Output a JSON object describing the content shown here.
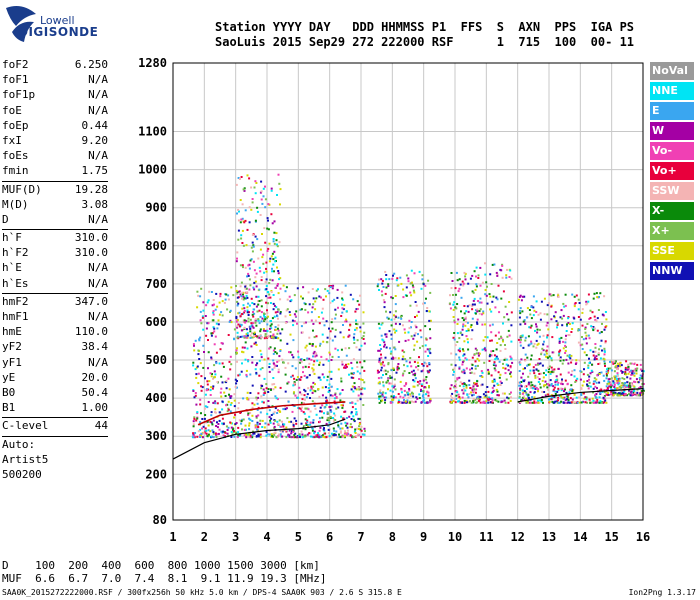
{
  "logo": {
    "line1": "Lowell",
    "line2": "DIGISONDE"
  },
  "header": {
    "line1": "Station YYYY DAY   DDD HHMMSS P1  FFS  S  AXN  PPS  IGA PS",
    "line2": "SaoLuis 2015 Sep29 272 222000 RSF      1  715  100  00- 11"
  },
  "params": [
    {
      "k": "foF2",
      "v": "6.250"
    },
    {
      "k": "foF1",
      "v": "N/A"
    },
    {
      "k": "foF1p",
      "v": "N/A"
    },
    {
      "k": "foE",
      "v": "N/A"
    },
    {
      "k": "foEp",
      "v": "0.44"
    },
    {
      "k": "fxI",
      "v": "9.20"
    },
    {
      "k": "foEs",
      "v": "N/A"
    },
    {
      "k": "fmin",
      "v": "1.75"
    },
    {
      "k": "MUF(D)",
      "v": "19.28",
      "sepBefore": true
    },
    {
      "k": "M(D)",
      "v": "3.08"
    },
    {
      "k": "D",
      "v": "N/A"
    },
    {
      "k": "h`F",
      "v": "310.0",
      "sepBefore": true
    },
    {
      "k": "h`F2",
      "v": "310.0"
    },
    {
      "k": "h`E",
      "v": "N/A"
    },
    {
      "k": "h`Es",
      "v": "N/A"
    },
    {
      "k": "hmF2",
      "v": "347.0",
      "sepBefore": true
    },
    {
      "k": "hmF1",
      "v": "N/A"
    },
    {
      "k": "hmE",
      "v": "110.0"
    },
    {
      "k": "yF2",
      "v": "38.4"
    },
    {
      "k": "yF1",
      "v": "N/A"
    },
    {
      "k": "yE",
      "v": "20.0"
    },
    {
      "k": "B0",
      "v": "50.4"
    },
    {
      "k": "B1",
      "v": "1.00"
    },
    {
      "k": "C-level",
      "v": "44",
      "sepBefore": true
    },
    {
      "k": "Auto:",
      "v": "",
      "sepBefore": true
    },
    {
      "k": "Artist5",
      "v": ""
    },
    {
      "k": "500200",
      "v": ""
    }
  ],
  "legend": [
    {
      "label": "NoVal",
      "color": "#9a9a9a"
    },
    {
      "label": "NNE",
      "color": "#00e4f4"
    },
    {
      "label": "E",
      "color": "#3aa6f0"
    },
    {
      "label": "W",
      "color": "#a400a4"
    },
    {
      "label": "Vo-",
      "color": "#f040b4"
    },
    {
      "label": "Vo+",
      "color": "#e8003c"
    },
    {
      "label": "SSW",
      "color": "#f4b4b4"
    },
    {
      "label": "X-",
      "color": "#0a8a0a"
    },
    {
      "label": "X+",
      "color": "#7cc050"
    },
    {
      "label": "SSE",
      "color": "#d8d800"
    },
    {
      "label": "NNW",
      "color": "#1010b4"
    }
  ],
  "chart_data": {
    "type": "scatter",
    "xlim": [
      1,
      16
    ],
    "ylim": [
      80,
      1280
    ],
    "x_ticks": [
      1,
      2,
      3,
      4,
      5,
      6,
      7,
      8,
      9,
      10,
      11,
      12,
      13,
      14,
      15,
      16
    ],
    "y_ticks": [
      80,
      200,
      300,
      400,
      500,
      600,
      700,
      800,
      900,
      1000,
      1100,
      1280
    ],
    "grid": true,
    "frequency_clusters": [
      {
        "x": [
          1.6,
          7.1
        ],
        "y": [
          300,
          700
        ]
      },
      {
        "x": [
          3.0,
          4.4
        ],
        "y": [
          560,
          1000
        ]
      },
      {
        "x": [
          7.5,
          9.2
        ],
        "y": [
          390,
          740
        ]
      },
      {
        "x": [
          9.8,
          11.8
        ],
        "y": [
          390,
          760
        ]
      },
      {
        "x": [
          12.0,
          14.8
        ],
        "y": [
          390,
          680
        ]
      },
      {
        "x": [
          14.8,
          16.0
        ],
        "y": [
          410,
          500
        ]
      }
    ],
    "trace_lower_line": [
      [
        1,
        240
      ],
      [
        2,
        283
      ],
      [
        3,
        305
      ],
      [
        4,
        315
      ],
      [
        5,
        320
      ],
      [
        6,
        330
      ],
      [
        6.5,
        345
      ]
    ],
    "trace_upper_line": [
      [
        12,
        390
      ],
      [
        13,
        405
      ],
      [
        14,
        415
      ],
      [
        15,
        420
      ],
      [
        16,
        425
      ]
    ],
    "trace_red_line": [
      [
        1.8,
        330
      ],
      [
        2.5,
        355
      ],
      [
        3.5,
        370
      ],
      [
        4.5,
        380
      ],
      [
        5.5,
        385
      ],
      [
        6.5,
        390
      ]
    ]
  },
  "dtable": {
    "row1": "D    100  200  400  600  800 1000 1500 3000 [km]",
    "row2": "MUF  6.6  6.7  7.0  7.4  8.1  9.1 11.9 19.3 [MHz]"
  },
  "footer": {
    "left": "SAA0K_2015272222000.RSF / 300fx256h 50 kHz 5.0 km / DPS-4 SAA0K 903 / 2.6 S 315.8 E",
    "right": "Ion2Png 1.3.17"
  }
}
